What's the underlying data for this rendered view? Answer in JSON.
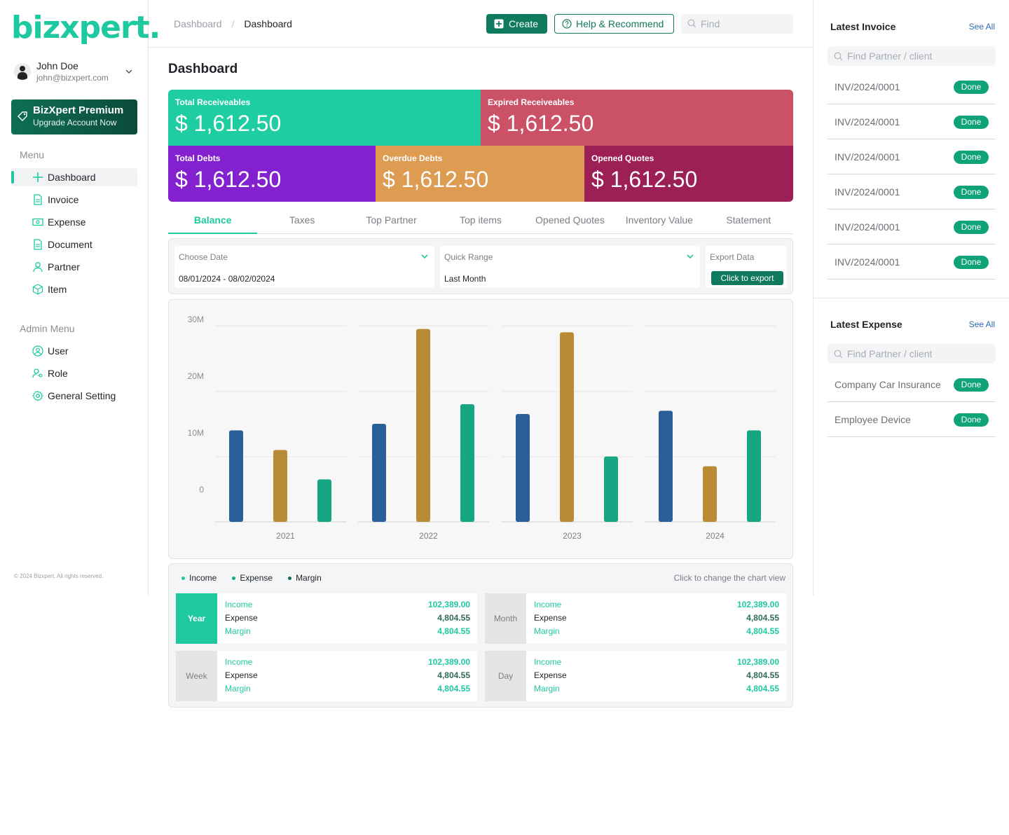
{
  "brand": {
    "logo_text": "bizxpert.",
    "primary": "#1ec9a0",
    "dark_green": "#0f7a5e"
  },
  "user": {
    "name": "John Doe",
    "email": "john@bizxpert.com"
  },
  "premium": {
    "title": "BizXpert Premium",
    "subtitle": "Upgrade Account Now"
  },
  "menu": {
    "label": "Menu",
    "items": [
      {
        "label": "Dashboard",
        "icon": "plus-cross-icon",
        "active": true
      },
      {
        "label": "Invoice",
        "icon": "document-icon"
      },
      {
        "label": "Expense",
        "icon": "cash-icon"
      },
      {
        "label": "Document",
        "icon": "document-icon"
      },
      {
        "label": "Partner",
        "icon": "person-icon"
      },
      {
        "label": "Item",
        "icon": "box-icon"
      }
    ]
  },
  "admin_menu": {
    "label": "Admin Menu",
    "items": [
      {
        "label": "User",
        "icon": "user-circle-icon"
      },
      {
        "label": "Role",
        "icon": "user-key-icon"
      },
      {
        "label": "General Setting",
        "icon": "gear-icon"
      }
    ]
  },
  "footer": {
    "copyright": "© 2024 Bizxpert. All rights reserved."
  },
  "header": {
    "breadcrumb": [
      "Dashboard",
      "Dashboard"
    ],
    "create_label": "Create",
    "help_label": "Help & Recommend",
    "find_placeholder": "Find"
  },
  "page": {
    "title": "Dashboard"
  },
  "stats": [
    {
      "label": "Total Receiveables",
      "value": "$ 1,612.50",
      "color": "#1fcda2"
    },
    {
      "label": "Expired Receiveables",
      "value": "$ 1,612.50",
      "color": "#cb5166"
    },
    {
      "label": "Total Debts",
      "value": "$ 1,612.50",
      "color": "#8320d0"
    },
    {
      "label": "Overdue Debts",
      "value": "$ 1,612.50",
      "color": "#de9b52"
    },
    {
      "label": "Opened Quotes",
      "value": "$ 1,612.50",
      "color": "#9c1f56"
    }
  ],
  "tabs": [
    "Balance",
    "Taxes",
    "Top Partner",
    "Top items",
    "Opened Quotes",
    "Inventory Value",
    "Statement"
  ],
  "filters": {
    "date_label": "Choose Date",
    "date_value": "08/01/2024 - 08/02/02024",
    "range_label": "Quick Range",
    "range_value": "Last Month",
    "export_label": "Export Data",
    "export_button": "Click to export"
  },
  "chart_data": {
    "type": "bar",
    "categories": [
      "2021",
      "2022",
      "2023",
      "2024"
    ],
    "series": [
      {
        "name": "Income",
        "color": "#2b5f9a",
        "values": [
          14,
          15,
          16.5,
          17
        ]
      },
      {
        "name": "Expense",
        "color": "#b98b35",
        "values": [
          11,
          29.5,
          29,
          8.5
        ]
      },
      {
        "name": "Margin",
        "color": "#17a683",
        "values": [
          6.5,
          18,
          10,
          14
        ]
      }
    ],
    "y_ticks": [
      "30M",
      "20M",
      "10M",
      "0"
    ],
    "ylim": [
      0,
      30
    ],
    "grid": true
  },
  "legend": {
    "items": [
      {
        "label": "Income",
        "color": "#1ec9a0"
      },
      {
        "label": "Expense",
        "color": "#17a683"
      },
      {
        "label": "Margin",
        "color": "#0f6e55"
      }
    ],
    "hint": "Click to change the chart view"
  },
  "periods": [
    {
      "label": "Year",
      "active": true,
      "rows": [
        [
          "Income",
          "102,389.00"
        ],
        [
          "Expense",
          "4,804.55"
        ],
        [
          "Margin",
          "4,804.55"
        ]
      ]
    },
    {
      "label": "Month",
      "active": false,
      "rows": [
        [
          "Income",
          "102,389.00"
        ],
        [
          "Expense",
          "4,804.55"
        ],
        [
          "Margin",
          "4,804.55"
        ]
      ]
    },
    {
      "label": "Week",
      "active": false,
      "rows": [
        [
          "Income",
          "102,389.00"
        ],
        [
          "Expense",
          "4,804.55"
        ],
        [
          "Margin",
          "4,804.55"
        ]
      ]
    },
    {
      "label": "Day",
      "active": false,
      "rows": [
        [
          "Income",
          "102,389.00"
        ],
        [
          "Expense",
          "4,804.55"
        ],
        [
          "Margin",
          "4,804.55"
        ]
      ]
    }
  ],
  "latest_invoice": {
    "title": "Latest Invoice",
    "see_all": "See All",
    "search_placeholder": "Find Partner / client",
    "items": [
      {
        "name": "INV/2024/0001",
        "status": "Done"
      },
      {
        "name": "INV/2024/0001",
        "status": "Done"
      },
      {
        "name": "INV/2024/0001",
        "status": "Done"
      },
      {
        "name": "INV/2024/0001",
        "status": "Done"
      },
      {
        "name": "INV/2024/0001",
        "status": "Done"
      },
      {
        "name": "INV/2024/0001",
        "status": "Done"
      }
    ]
  },
  "latest_expense": {
    "title": "Latest Expense",
    "see_all": "See All",
    "search_placeholder": "Find Partner / client",
    "items": [
      {
        "name": "Company Car Insurance",
        "status": "Done"
      },
      {
        "name": "Employee Device",
        "status": "Done"
      }
    ]
  }
}
